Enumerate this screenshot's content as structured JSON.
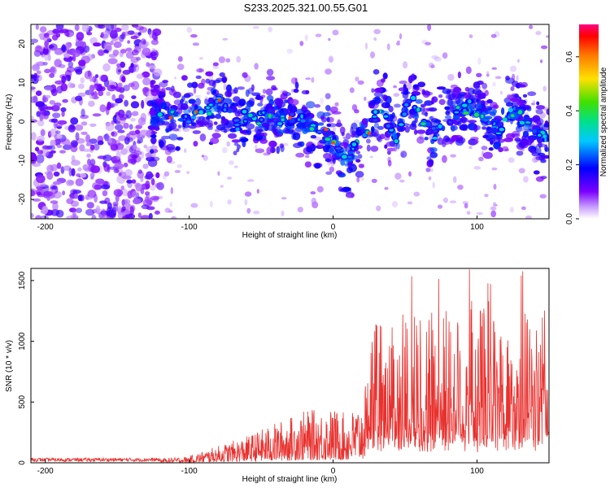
{
  "title": "S233.2025.321.00.55.G01",
  "chart_data": [
    {
      "type": "heatmap",
      "xlabel": "Height of straight line (km)",
      "ylabel": "Frequency (Hz)",
      "xlim": [
        -210,
        150
      ],
      "ylim": [
        -25,
        25
      ],
      "xticks": [
        -200,
        -100,
        0,
        100
      ],
      "yticks": [
        -20,
        -10,
        0,
        10,
        20
      ],
      "colorbar": {
        "label": "Normalized spectral amplitude",
        "range": [
          0,
          0.72
        ],
        "ticks": [
          0.0,
          0.2,
          0.4,
          0.6
        ]
      },
      "ridge": [
        [
          -125,
          0.5
        ],
        [
          -115,
          1.5
        ],
        [
          -105,
          0.5
        ],
        [
          -95,
          2.5
        ],
        [
          -85,
          3
        ],
        [
          -78,
          5
        ],
        [
          -72,
          1
        ],
        [
          -66,
          -1
        ],
        [
          -60,
          2
        ],
        [
          -52,
          0.5
        ],
        [
          -45,
          2
        ],
        [
          -38,
          0
        ],
        [
          -30,
          1
        ],
        [
          -22,
          0
        ],
        [
          -15,
          -1
        ],
        [
          -8,
          -2
        ],
        [
          -3,
          -4
        ],
        [
          0,
          -5.5
        ],
        [
          5,
          -8
        ],
        [
          10,
          -10
        ],
        [
          15,
          -5
        ],
        [
          20,
          -2
        ],
        [
          25,
          -3
        ],
        [
          30,
          2
        ],
        [
          35,
          3
        ],
        [
          40,
          -1
        ],
        [
          45,
          -5
        ],
        [
          50,
          4
        ],
        [
          55,
          5
        ],
        [
          60,
          3
        ],
        [
          65,
          -1
        ],
        [
          70,
          -3
        ],
        [
          78,
          -1
        ],
        [
          85,
          2
        ],
        [
          95,
          4
        ],
        [
          105,
          1
        ],
        [
          115,
          -2
        ],
        [
          125,
          3
        ],
        [
          135,
          0
        ],
        [
          145,
          -4
        ]
      ]
    },
    {
      "type": "line",
      "xlabel": "Height of straight line (km)",
      "ylabel": "SNR (10 * v/v)",
      "xlim": [
        -210,
        150
      ],
      "ylim": [
        0,
        1600
      ],
      "xticks": [
        -200,
        -100,
        0,
        100
      ],
      "yticks": [
        0,
        500,
        1000,
        1500
      ],
      "series_color": "#e8322f",
      "envelope": [
        [
          -210,
          30
        ],
        [
          -150,
          30
        ],
        [
          -120,
          35
        ],
        [
          -100,
          55
        ],
        [
          -80,
          140
        ],
        [
          -60,
          220
        ],
        [
          -40,
          330
        ],
        [
          -20,
          430
        ],
        [
          0,
          450
        ],
        [
          10,
          400
        ],
        [
          20,
          520
        ],
        [
          25,
          1150
        ],
        [
          40,
          1200
        ],
        [
          60,
          1250
        ],
        [
          80,
          1300
        ],
        [
          100,
          1350
        ],
        [
          120,
          1300
        ],
        [
          150,
          1250
        ]
      ]
    }
  ]
}
